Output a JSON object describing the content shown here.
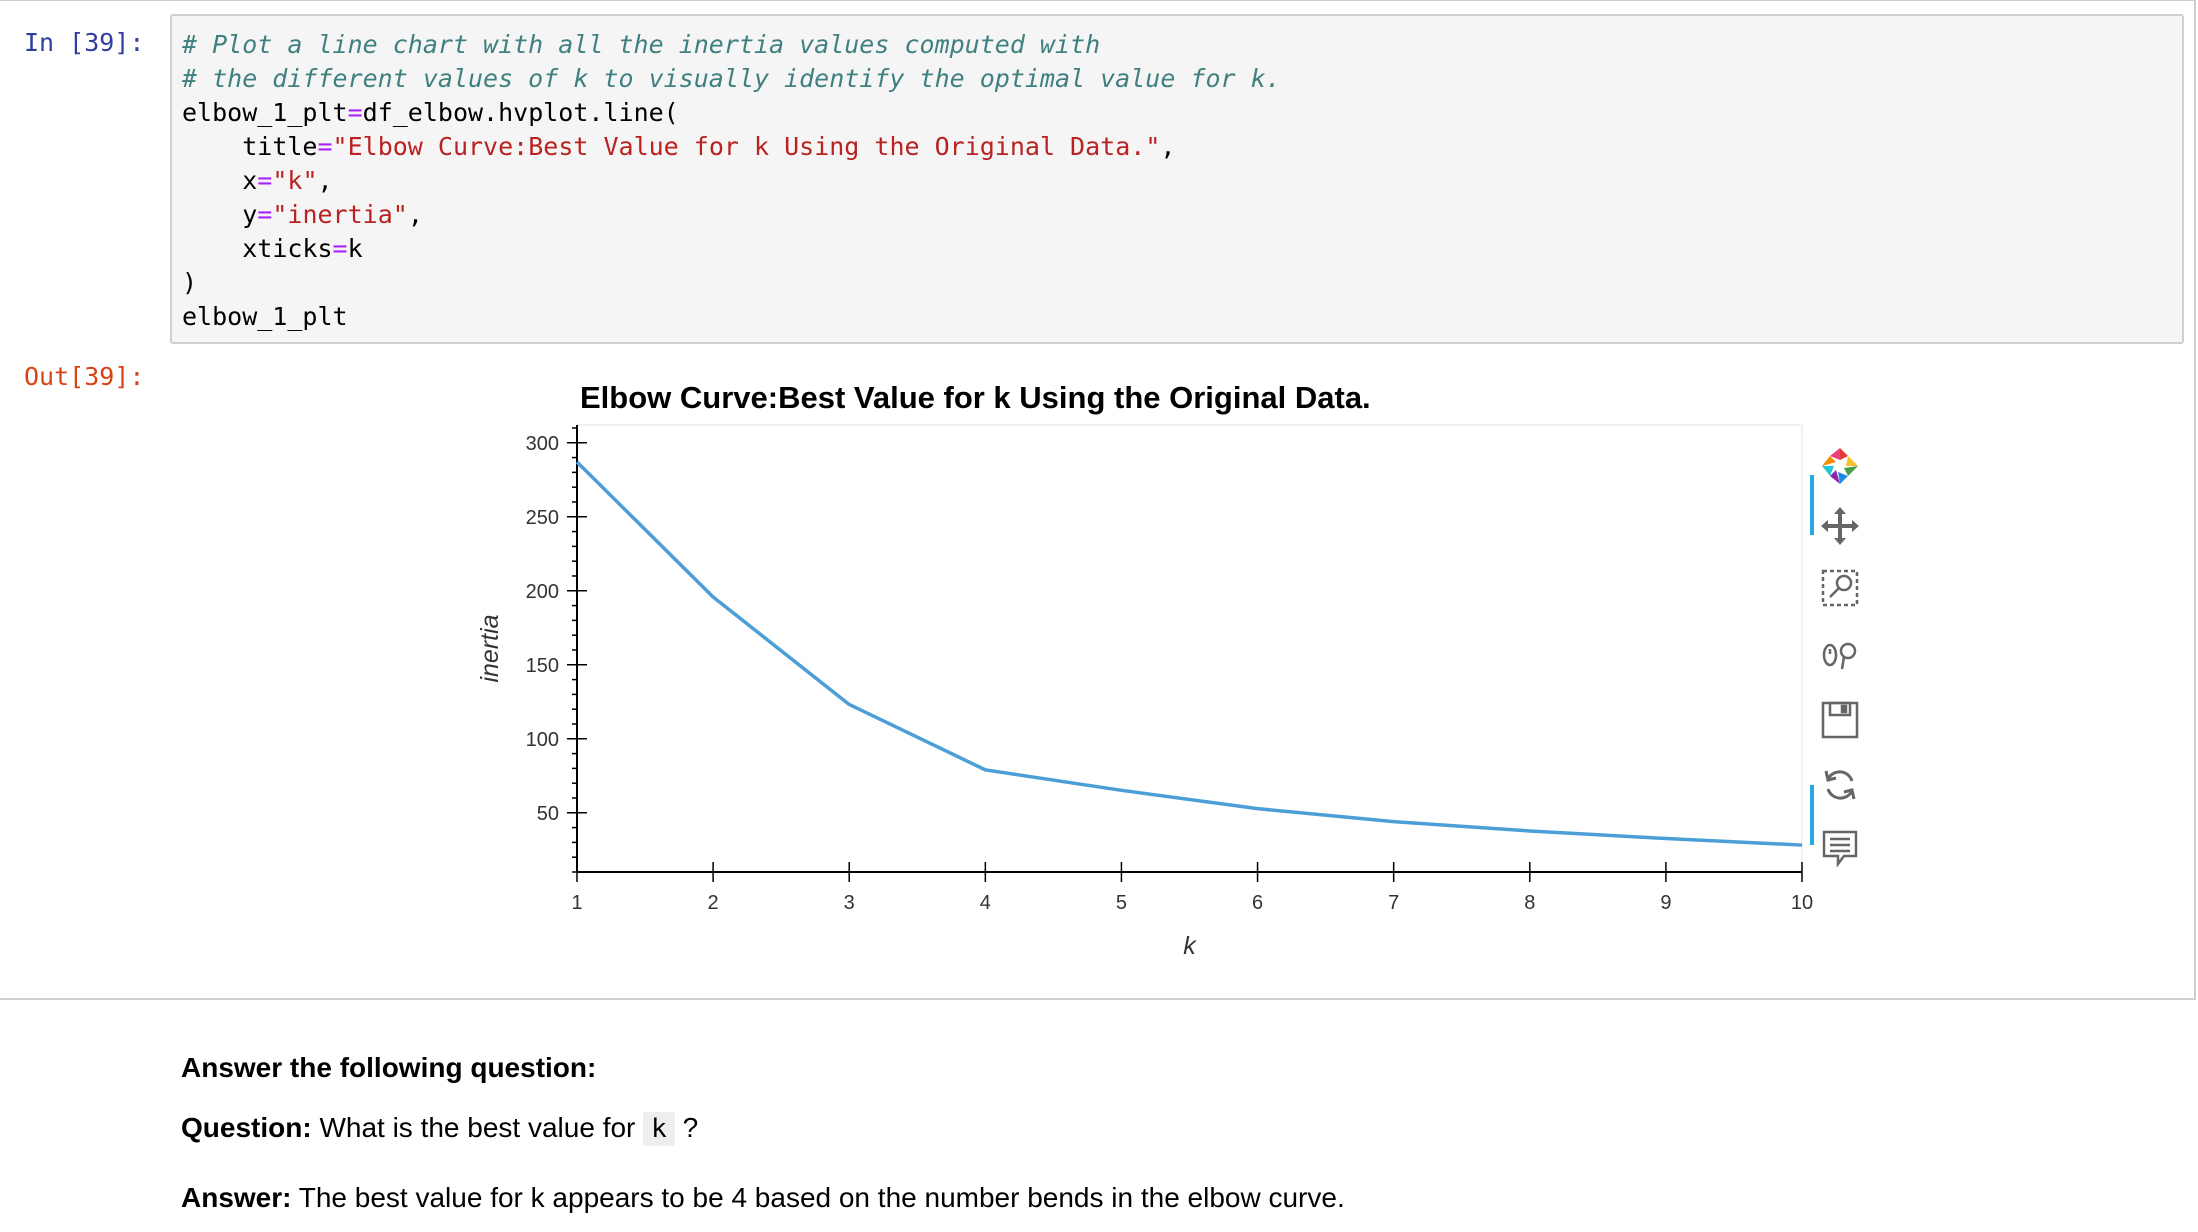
{
  "cell": {
    "in_prompt": "In [39]:",
    "out_prompt": "Out[39]:",
    "code": {
      "comment1": "# Plot a line chart with all the inertia values computed with",
      "comment2": "# the different values of k to visually identify the optimal value for k.",
      "line3_a": "elbow_1_plt",
      "line3_eq": "=",
      "line3_b": "df_elbow.hvplot.line(",
      "title_kw": "title",
      "title_eq": "=",
      "title_val": "\"Elbow Curve:Best Value for k Using the Original Data.\"",
      "title_comma": ",",
      "x_kw": "x",
      "x_eq": "=",
      "x_val": "\"k\"",
      "x_comma": ",",
      "y_kw": "y",
      "y_eq": "=",
      "y_val": "\"inertia\"",
      "y_comma": ",",
      "xticks_kw": "xticks",
      "xticks_eq": "=",
      "xticks_val": "k",
      "close": ")",
      "last": "elbow_1_plt"
    }
  },
  "chart_data": {
    "type": "line",
    "title": "Elbow Curve:Best Value for k Using the Original Data.",
    "xlabel": "k",
    "ylabel": "inertia",
    "x": [
      1,
      2,
      3,
      4,
      5,
      6,
      7,
      8,
      9,
      10
    ],
    "series": [
      {
        "values": [
          287.0,
          195.8,
          123.2,
          79.0,
          65.2,
          52.8,
          44.0,
          37.7,
          32.6,
          28.2
        ]
      }
    ],
    "xlim": [
      1,
      10
    ],
    "ylim": [
      10,
      312
    ],
    "yticks": [
      50,
      100,
      150,
      200,
      250,
      300
    ],
    "grid": false,
    "line_color": "#4c9fd6"
  },
  "toolbar": {
    "tools": [
      "bokeh-logo-icon",
      "pan-icon",
      "box-zoom-icon",
      "wheel-zoom-icon",
      "save-icon",
      "reset-icon",
      "hover-icon"
    ]
  },
  "markdown": {
    "heading": "Answer the following question:",
    "question_label": "Question:",
    "question_text": " What is the best value for ",
    "question_code": "k",
    "question_end": " ?",
    "answer_label": "Answer:",
    "answer_text": " The best value for k appears to be 4 based on the number bends in the elbow curve."
  }
}
